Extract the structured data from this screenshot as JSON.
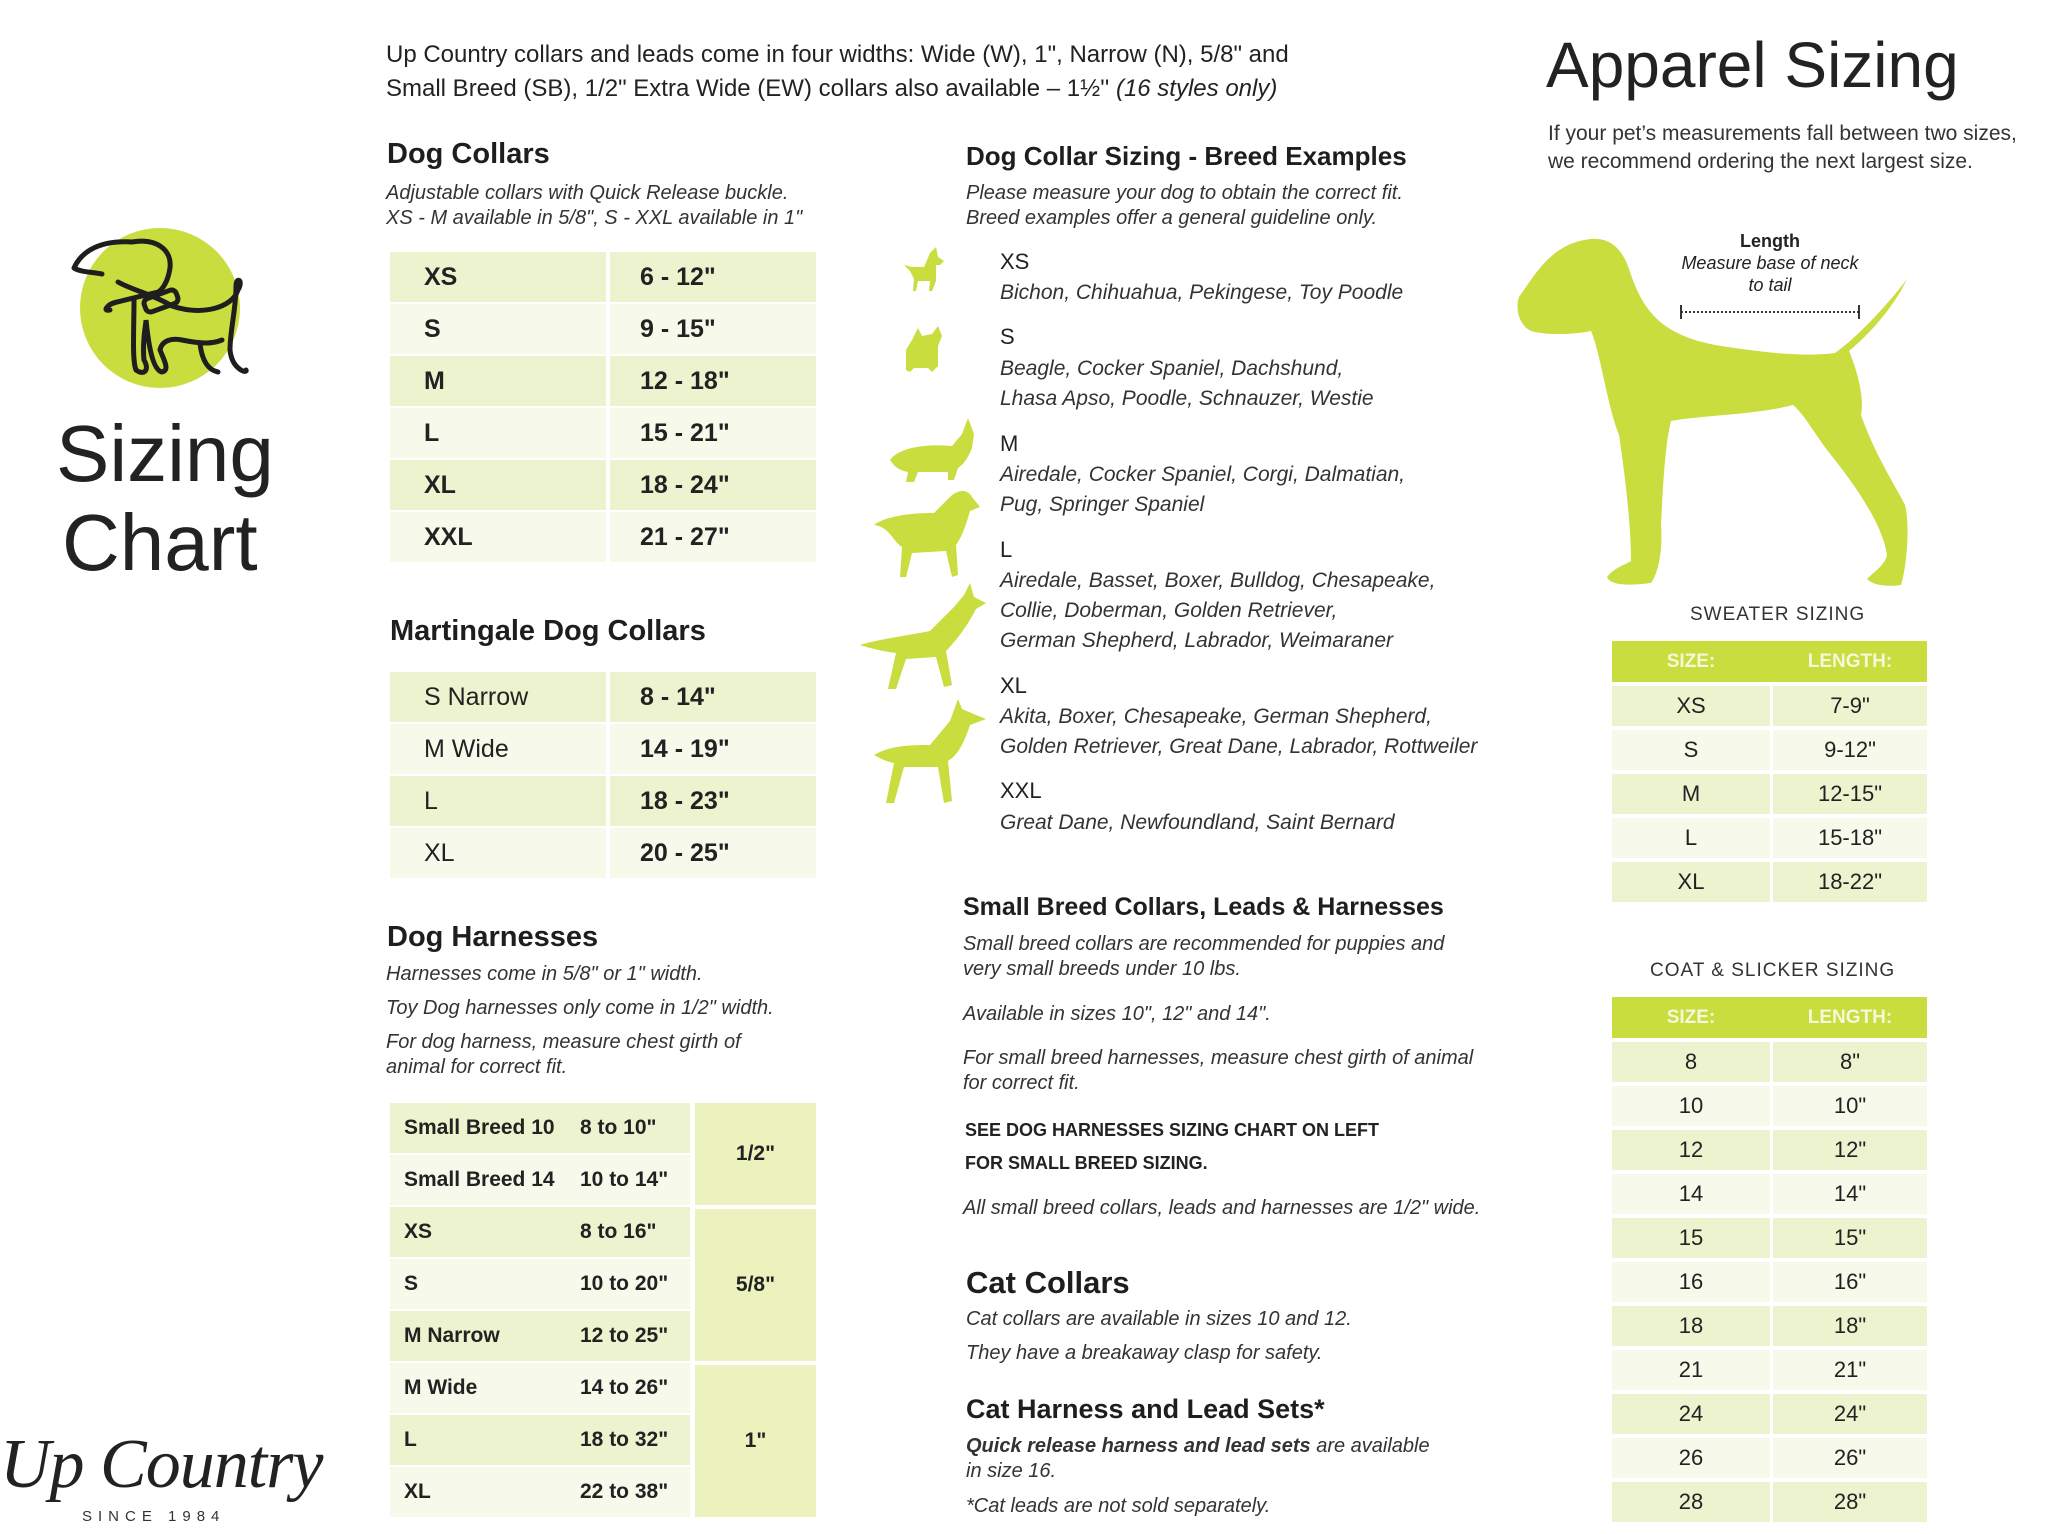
{
  "intro": {
    "line1": "Up Country collars and leads come in four widths: Wide (W), 1\", Narrow (N), 5/8\" and",
    "line2": "Small Breed (SB), 1/2\" Extra Wide (EW) collars also available – 1½''",
    "line2_italic": "(16 styles only)"
  },
  "left": {
    "title_line1": "Sizing",
    "title_line2": "Chart",
    "logo_text": "Up Country",
    "logo_since": "SINCE 1984"
  },
  "dog_collars": {
    "title": "Dog Collars",
    "sub1": "Adjustable collars with Quick Release buckle.",
    "sub2": "XS - M available in 5/8\", S - XXL available in 1\"",
    "rows": [
      {
        "size": "XS",
        "range": "6 - 12\""
      },
      {
        "size": "S",
        "range": "9 - 15\""
      },
      {
        "size": "M",
        "range": "12 - 18\""
      },
      {
        "size": "L",
        "range": "15 - 21\""
      },
      {
        "size": "XL",
        "range": "18 - 24\""
      },
      {
        "size": "XXL",
        "range": "21 - 27\""
      }
    ]
  },
  "martingale": {
    "title": "Martingale Dog Collars",
    "rows": [
      {
        "size": "S Narrow",
        "range": "8 - 14\""
      },
      {
        "size": "M Wide",
        "range": "14 - 19\""
      },
      {
        "size": "L",
        "range": "18 - 23\""
      },
      {
        "size": "XL",
        "range": "20 - 25\""
      }
    ]
  },
  "harnesses": {
    "title": "Dog Harnesses",
    "line1": "Harnesses come in 5/8\" or 1\" width.",
    "line2": "Toy Dog harnesses only come in 1/2\" width.",
    "line3a": "For dog harness, measure chest girth of",
    "line3b": "animal for correct fit.",
    "rows": [
      {
        "size": "Small Breed 10",
        "range": "8 to 10\""
      },
      {
        "size": "Small Breed 14",
        "range": "10 to 14\""
      },
      {
        "size": "XS",
        "range": "8 to 16\""
      },
      {
        "size": "S",
        "range": "10 to 20\""
      },
      {
        "size": "M Narrow",
        "range": "12 to 25\""
      },
      {
        "size": "M Wide",
        "range": "14 to 26\""
      },
      {
        "size": "L",
        "range": "18 to 32\""
      },
      {
        "size": "XL",
        "range": "22 to 38\""
      }
    ],
    "widths": [
      "1/2\"",
      "5/8\"",
      "1\""
    ]
  },
  "breeds": {
    "title": "Dog Collar Sizing - Breed Examples",
    "sub1": "Please measure your dog to obtain the correct fit.",
    "sub2": "Breed examples offer a general guideline only.",
    "items": [
      {
        "size": "XS",
        "lines": [
          "Bichon, Chihuahua, Pekingese, Toy Poodle"
        ]
      },
      {
        "size": "S",
        "lines": [
          "Beagle, Cocker Spaniel, Dachshund,",
          "Lhasa Apso, Poodle, Schnauzer, Westie"
        ]
      },
      {
        "size": "M",
        "lines": [
          "Airedale, Cocker Spaniel, Corgi, Dalmatian,",
          "Pug, Springer Spaniel"
        ]
      },
      {
        "size": "L",
        "lines": [
          "Airedale, Basset, Boxer, Bulldog, Chesapeake,",
          "Collie, Doberman, Golden Retriever,",
          "German Shepherd, Labrador, Weimaraner"
        ]
      },
      {
        "size": "XL",
        "lines": [
          "Akita, Boxer, Chesapeake, German Shepherd,",
          "Golden Retriever, Great Dane, Labrador, Rottweiler"
        ]
      },
      {
        "size": "XXL",
        "lines": [
          "Great Dane, Newfoundland, Saint Bernard"
        ]
      }
    ]
  },
  "small_breed": {
    "title": "Small Breed Collars, Leads & Harnesses",
    "p1a": "Small breed collars are recommended for puppies and",
    "p1b": "very small breeds under 10 lbs.",
    "p2": "Available in sizes 10\", 12\" and 14\".",
    "p3a": "For small breed harnesses, measure chest girth of animal",
    "p3b": "for correct fit.",
    "bold1": "SEE DOG HARNESSES SIZING CHART ON LEFT",
    "bold2": "FOR SMALL BREED SIZING.",
    "p4": "All small breed collars, leads and harnesses are 1/2\" wide."
  },
  "cat_collars": {
    "title": "Cat Collars",
    "line1": "Cat collars are available in sizes 10 and 12.",
    "line2": "They have a breakaway clasp for safety."
  },
  "cat_harness": {
    "title": "Cat Harness and Lead Sets*",
    "line1_bold": "Quick release harness and lead sets",
    "line1_rest": " are available",
    "line2": "in size 16.",
    "line3": "*Cat leads are not sold separately."
  },
  "apparel": {
    "title": "Apparel Sizing",
    "sub1": "If your pet’s measurements fall between two sizes,",
    "sub2": "we recommend ordering the next largest size.",
    "length_label": "Length",
    "length_desc1": "Measure base of neck",
    "length_desc2": "to tail"
  },
  "sweater": {
    "title": "SWEATER SIZING",
    "headers": [
      "SIZE:",
      "LENGTH:"
    ],
    "rows": [
      [
        "XS",
        "7-9\""
      ],
      [
        "S",
        "9-12\""
      ],
      [
        "M",
        "12-15\""
      ],
      [
        "L",
        "15-18\""
      ],
      [
        "XL",
        "18-22\""
      ]
    ]
  },
  "coat": {
    "title": "COAT & SLICKER SIZING",
    "headers": [
      "SIZE:",
      "LENGTH:"
    ],
    "rows": [
      [
        "8",
        "8\""
      ],
      [
        "10",
        "10\""
      ],
      [
        "12",
        "12\""
      ],
      [
        "14",
        "14\""
      ],
      [
        "15",
        "15\""
      ],
      [
        "16",
        "16\""
      ],
      [
        "18",
        "18\""
      ],
      [
        "21",
        "21\""
      ],
      [
        "24",
        "24\""
      ],
      [
        "26",
        "26\""
      ],
      [
        "28",
        "28\""
      ]
    ]
  },
  "colors": {
    "accent": "#c9dd3f",
    "row_dark": "#eef3cf",
    "row_light": "#f7faea",
    "text": "#222222"
  }
}
